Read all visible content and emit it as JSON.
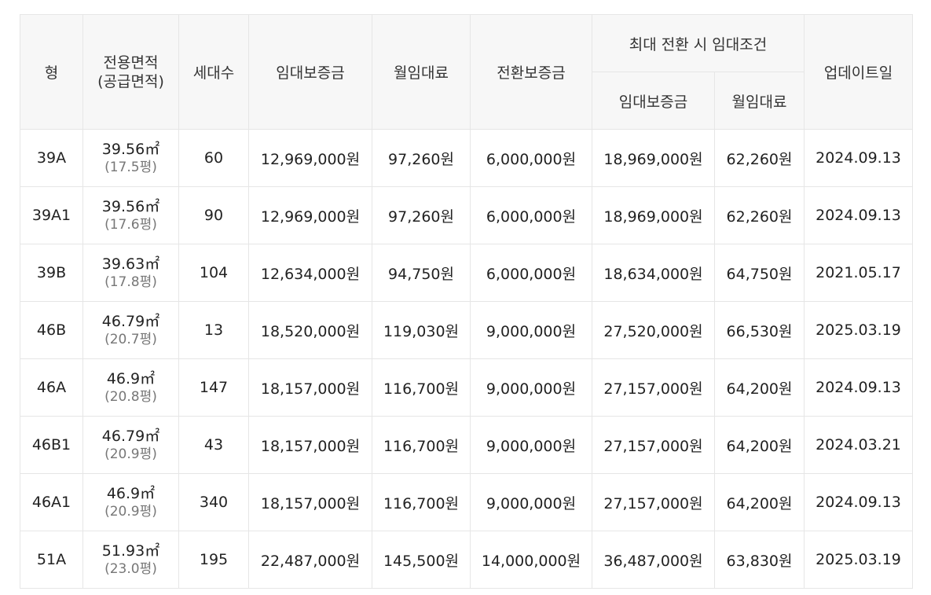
{
  "headers": {
    "type": "형",
    "area_line1": "전용면적",
    "area_line2": "(공급면적)",
    "households": "세대수",
    "deposit": "임대보증금",
    "monthly": "월임대료",
    "conversion_deposit": "전환보증금",
    "max_conversion": "최대 전환 시 임대조건",
    "max_deposit": "임대보증금",
    "max_monthly": "월임대료",
    "updated": "업데이트일"
  },
  "rows": [
    {
      "type": "39A",
      "area": "39.56㎡",
      "supply": "(17.5평)",
      "households": "60",
      "deposit": "12,969,000원",
      "monthly": "97,260원",
      "conversion": "6,000,000원",
      "max_deposit": "18,969,000원",
      "max_monthly": "62,260원",
      "updated": "2024.09.13"
    },
    {
      "type": "39A1",
      "area": "39.56㎡",
      "supply": "(17.6평)",
      "households": "90",
      "deposit": "12,969,000원",
      "monthly": "97,260원",
      "conversion": "6,000,000원",
      "max_deposit": "18,969,000원",
      "max_monthly": "62,260원",
      "updated": "2024.09.13"
    },
    {
      "type": "39B",
      "area": "39.63㎡",
      "supply": "(17.8평)",
      "households": "104",
      "deposit": "12,634,000원",
      "monthly": "94,750원",
      "conversion": "6,000,000원",
      "max_deposit": "18,634,000원",
      "max_monthly": "64,750원",
      "updated": "2021.05.17"
    },
    {
      "type": "46B",
      "area": "46.79㎡",
      "supply": "(20.7평)",
      "households": "13",
      "deposit": "18,520,000원",
      "monthly": "119,030원",
      "conversion": "9,000,000원",
      "max_deposit": "27,520,000원",
      "max_monthly": "66,530원",
      "updated": "2025.03.19"
    },
    {
      "type": "46A",
      "area": "46.9㎡",
      "supply": "(20.8평)",
      "households": "147",
      "deposit": "18,157,000원",
      "monthly": "116,700원",
      "conversion": "9,000,000원",
      "max_deposit": "27,157,000원",
      "max_monthly": "64,200원",
      "updated": "2024.09.13"
    },
    {
      "type": "46B1",
      "area": "46.79㎡",
      "supply": "(20.9평)",
      "households": "43",
      "deposit": "18,157,000원",
      "monthly": "116,700원",
      "conversion": "9,000,000원",
      "max_deposit": "27,157,000원",
      "max_monthly": "64,200원",
      "updated": "2024.03.21"
    },
    {
      "type": "46A1",
      "area": "46.9㎡",
      "supply": "(20.9평)",
      "households": "340",
      "deposit": "18,157,000원",
      "monthly": "116,700원",
      "conversion": "9,000,000원",
      "max_deposit": "27,157,000원",
      "max_monthly": "64,200원",
      "updated": "2024.09.13"
    },
    {
      "type": "51A",
      "area": "51.93㎡",
      "supply": "(23.0평)",
      "households": "195",
      "deposit": "22,487,000원",
      "monthly": "145,500원",
      "conversion": "14,000,000원",
      "max_deposit": "36,487,000원",
      "max_monthly": "63,830원",
      "updated": "2025.03.19"
    }
  ]
}
